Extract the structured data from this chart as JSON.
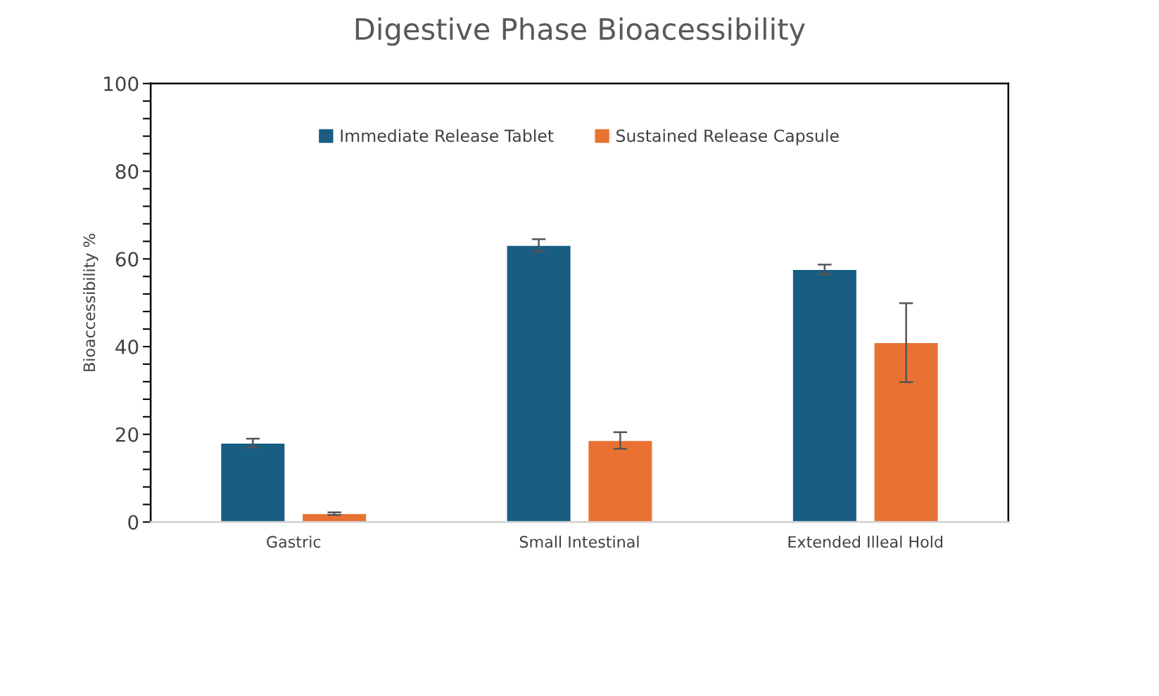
{
  "chart_data": {
    "type": "bar",
    "title": "Digestive Phase Bioacessibility",
    "ylabel": "Bioaccessibility %",
    "categories": [
      "Gastric",
      "Small Intestinal",
      "Extended Illeal Hold"
    ],
    "series": [
      {
        "name": "Immediate Release Tablet",
        "color": "#175e82",
        "values": [
          18,
          63.1,
          57.6
        ],
        "errors": [
          1,
          1.4,
          1.1
        ]
      },
      {
        "name": "Sustained Release Capsule",
        "color": "#e97132",
        "values": [
          1.9,
          18.6,
          40.9
        ],
        "errors": [
          0.3,
          1.9,
          9
        ]
      }
    ],
    "ylim": [
      0,
      100
    ],
    "yticks": [
      0,
      {
        "value": 4,
        "label": null
      },
      {
        "value": 8,
        "label": null
      },
      {
        "value": 12,
        "label": null
      },
      {
        "value": 16,
        "label": null
      },
      20,
      {
        "value": 24,
        "label": null
      },
      {
        "value": 28,
        "label": null
      },
      {
        "value": 32,
        "label": null
      },
      {
        "value": 36,
        "label": null
      },
      40,
      {
        "value": 44,
        "label": null
      },
      {
        "value": 48,
        "label": null
      },
      {
        "value": 52,
        "label": null
      },
      {
        "value": 56,
        "label": null
      },
      60,
      {
        "value": 64,
        "label": null
      },
      {
        "value": 68,
        "label": null
      },
      {
        "value": 72,
        "label": null
      },
      {
        "value": 76,
        "label": null
      },
      80,
      {
        "value": 84,
        "label": null
      },
      {
        "value": 88,
        "label": null
      },
      {
        "value": 92,
        "label": null
      },
      {
        "value": 96,
        "label": null
      },
      100
    ],
    "grid": false,
    "legend": "top"
  }
}
